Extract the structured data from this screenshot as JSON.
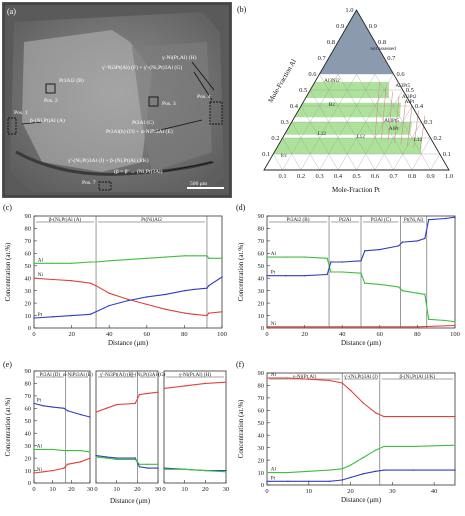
{
  "figure": {
    "colors": {
      "al": "#3fbf3f",
      "ni": "#e0413c",
      "pt": "#2f3fbf",
      "phase_green": "#9fdd8a",
      "unassessed": "#8a9bb0",
      "sem_bg": "#6b6b6b"
    }
  },
  "panel_a": {
    "label": "(a)",
    "annotations": [
      {
        "text": "γ-Ni(Pt,Al) (H)"
      },
      {
        "text": "γ'-Ni3Pt(Al) (F) + γ'-(Ni,Pt)3Al (G)"
      },
      {
        "text": "Pt3Al2 (B)"
      },
      {
        "text": "Pos. 2"
      },
      {
        "text": "Pos. 3"
      },
      {
        "text": "Pos. 4"
      },
      {
        "text": "Pos. 1"
      },
      {
        "text": "β-(Ni,Pt)Al (A)"
      },
      {
        "text": "Pt3Al (C)"
      },
      {
        "text": "Pt3Al(h) (D) + α-NiPt3Al (E)"
      },
      {
        "text": "γ'-(Ni,Pt)3Al (I) + β-(Ni,Pt)Al (J/K)"
      },
      {
        "text": "Pos. 7"
      },
      {
        "text": "(β = β' → (Ni,Pt)3Al)"
      },
      {
        "text": "500 μm"
      }
    ]
  },
  "panel_b": {
    "label": "(b)",
    "left_axis_label": "Mole-Fraction Al",
    "bottom_axis_label": "Mole-Fraction Pt",
    "left_ticks": [
      "0.1",
      "0.2",
      "0.3",
      "0.4",
      "0.5",
      "0.6",
      "0.7",
      "0.8",
      "0.9",
      "1.0"
    ],
    "bottom_ticks": [
      "0.1",
      "0.2",
      "0.3",
      "0.4",
      "0.5",
      "0.6",
      "0.7",
      "0.8",
      "0.9",
      "1.0"
    ],
    "right_ticks": [
      "0.1",
      "0.2",
      "0.3",
      "0.4",
      "0.5",
      "0.6",
      "0.7",
      "0.8",
      "0.9"
    ],
    "region_labels": [
      "not assessed",
      "Al3Ni2",
      "Al3Pt5",
      "AlPt",
      "Al3Pt5",
      "AlPt",
      "B2",
      "L12",
      "L12",
      "L12",
      "fcc",
      "Al3Pt2"
    ]
  },
  "chart_data": [
    {
      "panel": "c",
      "type": "line",
      "title": "(c)",
      "xlabel": "Distance (μm)",
      "ylabel": "Concentration (at.%)",
      "xlim": [
        0,
        100
      ],
      "ylim": [
        0,
        90
      ],
      "xticks": [
        0,
        20,
        40,
        60,
        80,
        100
      ],
      "yticks": [
        0,
        10,
        20,
        30,
        40,
        50,
        60,
        70,
        80,
        90
      ],
      "phase_labels": [
        "β-(Ni,Pt)Al (A)",
        "Pt(Ni)Al2"
      ],
      "phase_boundaries": [
        33,
        92
      ],
      "series": [
        {
          "name": "Al",
          "color": "#3fbf3f",
          "x": [
            0,
            10,
            20,
            30,
            33,
            40,
            50,
            60,
            70,
            80,
            85,
            92,
            93,
            100
          ],
          "y": [
            52,
            52,
            52,
            53,
            53,
            54,
            55,
            56,
            57,
            58,
            58,
            58,
            56,
            56
          ]
        },
        {
          "name": "Ni",
          "color": "#e0413c",
          "x": [
            0,
            10,
            20,
            30,
            33,
            40,
            50,
            60,
            70,
            80,
            85,
            92,
            93,
            100
          ],
          "y": [
            40,
            39,
            38,
            36,
            34,
            28,
            23,
            19,
            15,
            12,
            11,
            10,
            12,
            13
          ]
        },
        {
          "name": "Pt",
          "color": "#2f3fbf",
          "x": [
            0,
            10,
            20,
            30,
            33,
            40,
            50,
            60,
            70,
            80,
            85,
            92,
            93,
            100
          ],
          "y": [
            8,
            9,
            10,
            11,
            13,
            18,
            22,
            25,
            27,
            30,
            31,
            32,
            34,
            41
          ]
        }
      ]
    },
    {
      "panel": "d",
      "type": "line",
      "title": "(d)",
      "xlabel": "Distance (μm)",
      "ylabel": "Concentration (at.%)",
      "xlim": [
        0,
        100
      ],
      "ylim": [
        0,
        90
      ],
      "xticks": [
        0,
        20,
        40,
        60,
        80,
        100
      ],
      "yticks": [
        0,
        10,
        20,
        30,
        40,
        50,
        60,
        70,
        80,
        90
      ],
      "phase_labels": [
        "Pt3Al2 (B)",
        "Pt2Al",
        "Pt3Al (C)",
        "Pt(Ni,Al)"
      ],
      "phase_boundaries": [
        33,
        50,
        71,
        85
      ],
      "series": [
        {
          "name": "Al",
          "color": "#3fbf3f",
          "x": [
            0,
            10,
            20,
            32,
            34,
            40,
            50,
            52,
            60,
            70,
            72,
            80,
            84,
            86,
            95,
            100
          ],
          "y": [
            57,
            57,
            57,
            56,
            45,
            45,
            44,
            36,
            35,
            33,
            30,
            28,
            27,
            7,
            6,
            5
          ]
        },
        {
          "name": "Pt",
          "color": "#2f3fbf",
          "x": [
            0,
            10,
            20,
            32,
            34,
            40,
            50,
            52,
            60,
            70,
            72,
            80,
            84,
            86,
            95,
            100
          ],
          "y": [
            42,
            42,
            42,
            43,
            53,
            53,
            54,
            62,
            63,
            66,
            69,
            70,
            72,
            87,
            88,
            89
          ]
        },
        {
          "name": "Ni",
          "color": "#e0413c",
          "x": [
            0,
            20,
            40,
            60,
            80,
            100
          ],
          "y": [
            1,
            1,
            1,
            1,
            1,
            2
          ]
        }
      ]
    },
    {
      "panel": "e",
      "type": "line",
      "title": "(e)",
      "xlabel": "Distance (μm)",
      "ylabel": "Concentration (at.%)",
      "ylim": [
        0,
        90
      ],
      "yticks": [
        0,
        10,
        20,
        30,
        40,
        50,
        60,
        70,
        80,
        90
      ],
      "subplots": [
        {
          "xlim": [
            0,
            30
          ],
          "xticks": [
            0,
            10,
            20,
            30
          ],
          "phase_labels": [
            "Pt3Al (D)",
            "α-NiPt3Al (E)"
          ],
          "phase_boundaries": [
            17
          ],
          "series": [
            {
              "name": "Pt",
              "color": "#2f3fbf",
              "x": [
                0,
                5,
                10,
                16,
                18,
                25,
                30
              ],
              "y": [
                64,
                62,
                61,
                60,
                58,
                55,
                53
              ]
            },
            {
              "name": "Al",
              "color": "#3fbf3f",
              "x": [
                0,
                5,
                10,
                16,
                18,
                25,
                30
              ],
              "y": [
                27,
                27,
                27,
                26,
                26,
                26,
                25
              ]
            },
            {
              "name": "Ni",
              "color": "#e0413c",
              "x": [
                0,
                5,
                10,
                16,
                18,
                25,
                30
              ],
              "y": [
                8,
                9,
                10,
                12,
                15,
                17,
                20
              ]
            }
          ]
        },
        {
          "xlim": [
            0,
            30
          ],
          "xticks": [
            0,
            10,
            20,
            30
          ],
          "phase_labels": [
            "γ'-Ni3Pt(Al) (F)",
            "γ'-(Ni,Pt)3Al (G)"
          ],
          "phase_boundaries": [
            20
          ],
          "series": [
            {
              "name": "Ni",
              "color": "#e0413c",
              "x": [
                0,
                5,
                10,
                19,
                21,
                25,
                30
              ],
              "y": [
                57,
                60,
                63,
                64,
                71,
                72,
                73
              ]
            },
            {
              "name": "Pt",
              "color": "#2f3fbf",
              "x": [
                0,
                5,
                10,
                19,
                21,
                25,
                30
              ],
              "y": [
                22,
                21,
                20,
                20,
                13,
                12,
                12
              ]
            },
            {
              "name": "Al",
              "color": "#3fbf3f",
              "x": [
                0,
                5,
                10,
                19,
                21,
                25,
                30
              ],
              "y": [
                21,
                20,
                19,
                19,
                15,
                15,
                15
              ]
            }
          ]
        },
        {
          "xlim": [
            0,
            30
          ],
          "xticks": [
            0,
            10,
            20,
            30
          ],
          "phase_labels": [
            "γ-Ni(Pt,Al) (H)"
          ],
          "phase_boundaries": [],
          "series": [
            {
              "name": "Ni",
              "color": "#e0413c",
              "x": [
                0,
                10,
                20,
                30
              ],
              "y": [
                76,
                78,
                80,
                81
              ]
            },
            {
              "name": "Pt",
              "color": "#2f3fbf",
              "x": [
                0,
                10,
                20,
                30
              ],
              "y": [
                12,
                11,
                10,
                10
              ]
            },
            {
              "name": "Al",
              "color": "#3fbf3f",
              "x": [
                0,
                10,
                20,
                30
              ],
              "y": [
                11,
                11,
                10,
                9
              ]
            }
          ]
        }
      ]
    },
    {
      "panel": "f",
      "type": "line",
      "title": "(f)",
      "xlabel": "Distance (μm)",
      "ylabel": "Concentration (at.%)",
      "xlim": [
        0,
        45
      ],
      "ylim": [
        0,
        90
      ],
      "xticks": [
        0,
        10,
        20,
        30,
        40
      ],
      "yticks": [
        0,
        10,
        20,
        30,
        40,
        50,
        60,
        70,
        80,
        90
      ],
      "phase_labels": [
        "γ-Ni(Pt,Al)",
        "γ'-(Ni,Pt)3Al (I)",
        "β-(Ni,Pt)Al (J/K)"
      ],
      "phase_boundaries": [
        18,
        27
      ],
      "series": [
        {
          "name": "Ni",
          "color": "#e0413c",
          "x": [
            0,
            5,
            10,
            15,
            18,
            20,
            23,
            26,
            28,
            35,
            45
          ],
          "y": [
            86,
            86,
            85,
            84,
            82,
            76,
            66,
            58,
            55,
            55,
            55
          ]
        },
        {
          "name": "Al",
          "color": "#3fbf3f",
          "x": [
            0,
            5,
            10,
            15,
            18,
            20,
            23,
            26,
            28,
            35,
            45
          ],
          "y": [
            10,
            10,
            11,
            12,
            13,
            16,
            22,
            28,
            31,
            31,
            32
          ]
        },
        {
          "name": "Pt",
          "color": "#2f3fbf",
          "x": [
            0,
            5,
            10,
            15,
            18,
            20,
            23,
            26,
            28,
            35,
            45
          ],
          "y": [
            3,
            3,
            3,
            3,
            4,
            6,
            9,
            11,
            12,
            12,
            12
          ]
        }
      ]
    }
  ]
}
